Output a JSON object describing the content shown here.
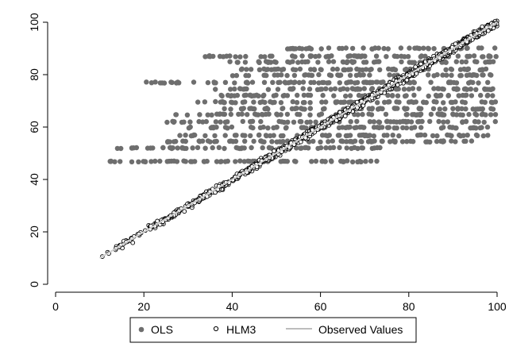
{
  "chart_data": {
    "type": "scatter",
    "title": "",
    "xlabel": "",
    "ylabel": "",
    "xlim": [
      0,
      100
    ],
    "ylim": [
      0,
      100
    ],
    "x_ticks": [
      "0",
      "20",
      "40",
      "60",
      "80",
      "100"
    ],
    "y_ticks": [
      "0",
      "20",
      "40",
      "60",
      "80",
      "100"
    ],
    "grid": false,
    "legend_placement": "bottom",
    "series": [
      {
        "name": "OLS",
        "marker": "filled-circle",
        "color": "#6e6e6e",
        "levels": [
          46.9,
          52.0,
          54.5,
          56.8,
          59.8,
          62.0,
          64.8,
          67.0,
          69.5,
          72.0,
          74.5,
          77.0,
          79.8,
          82.0,
          84.8,
          87.0,
          90.0
        ],
        "level_x_ranges": [
          [
            12,
            73
          ],
          [
            12,
            74
          ],
          [
            25,
            95
          ],
          [
            28,
            100
          ],
          [
            30,
            100
          ],
          [
            24,
            100
          ],
          [
            27,
            100
          ],
          [
            37,
            100
          ],
          [
            32,
            100
          ],
          [
            37,
            100
          ],
          [
            36,
            100
          ],
          [
            20,
            100
          ],
          [
            40,
            100
          ],
          [
            40,
            100
          ],
          [
            38,
            100
          ],
          [
            33,
            100
          ],
          [
            46,
            100
          ]
        ],
        "upper_envelope": [
          [
            20,
            77
          ],
          [
            30,
            85
          ],
          [
            40,
            88
          ],
          [
            60,
            90
          ],
          [
            100,
            90
          ]
        ],
        "lower_envelope_y": 46.9,
        "approx_point_count": 1200
      },
      {
        "name": "HLM3",
        "marker": "hollow-circle",
        "color": "#000000",
        "x_range": [
          10,
          100
        ],
        "y_range": [
          9,
          101
        ],
        "relation": "y ≈ x",
        "approx_point_count": 1200
      },
      {
        "name": "Observed Values",
        "marker": "line",
        "color": "#cfcfcf",
        "x": [
          10,
          100
        ],
        "y": [
          10,
          100
        ]
      }
    ]
  },
  "legend": {
    "items": [
      "OLS",
      "HLM3",
      "Observed Values"
    ]
  }
}
